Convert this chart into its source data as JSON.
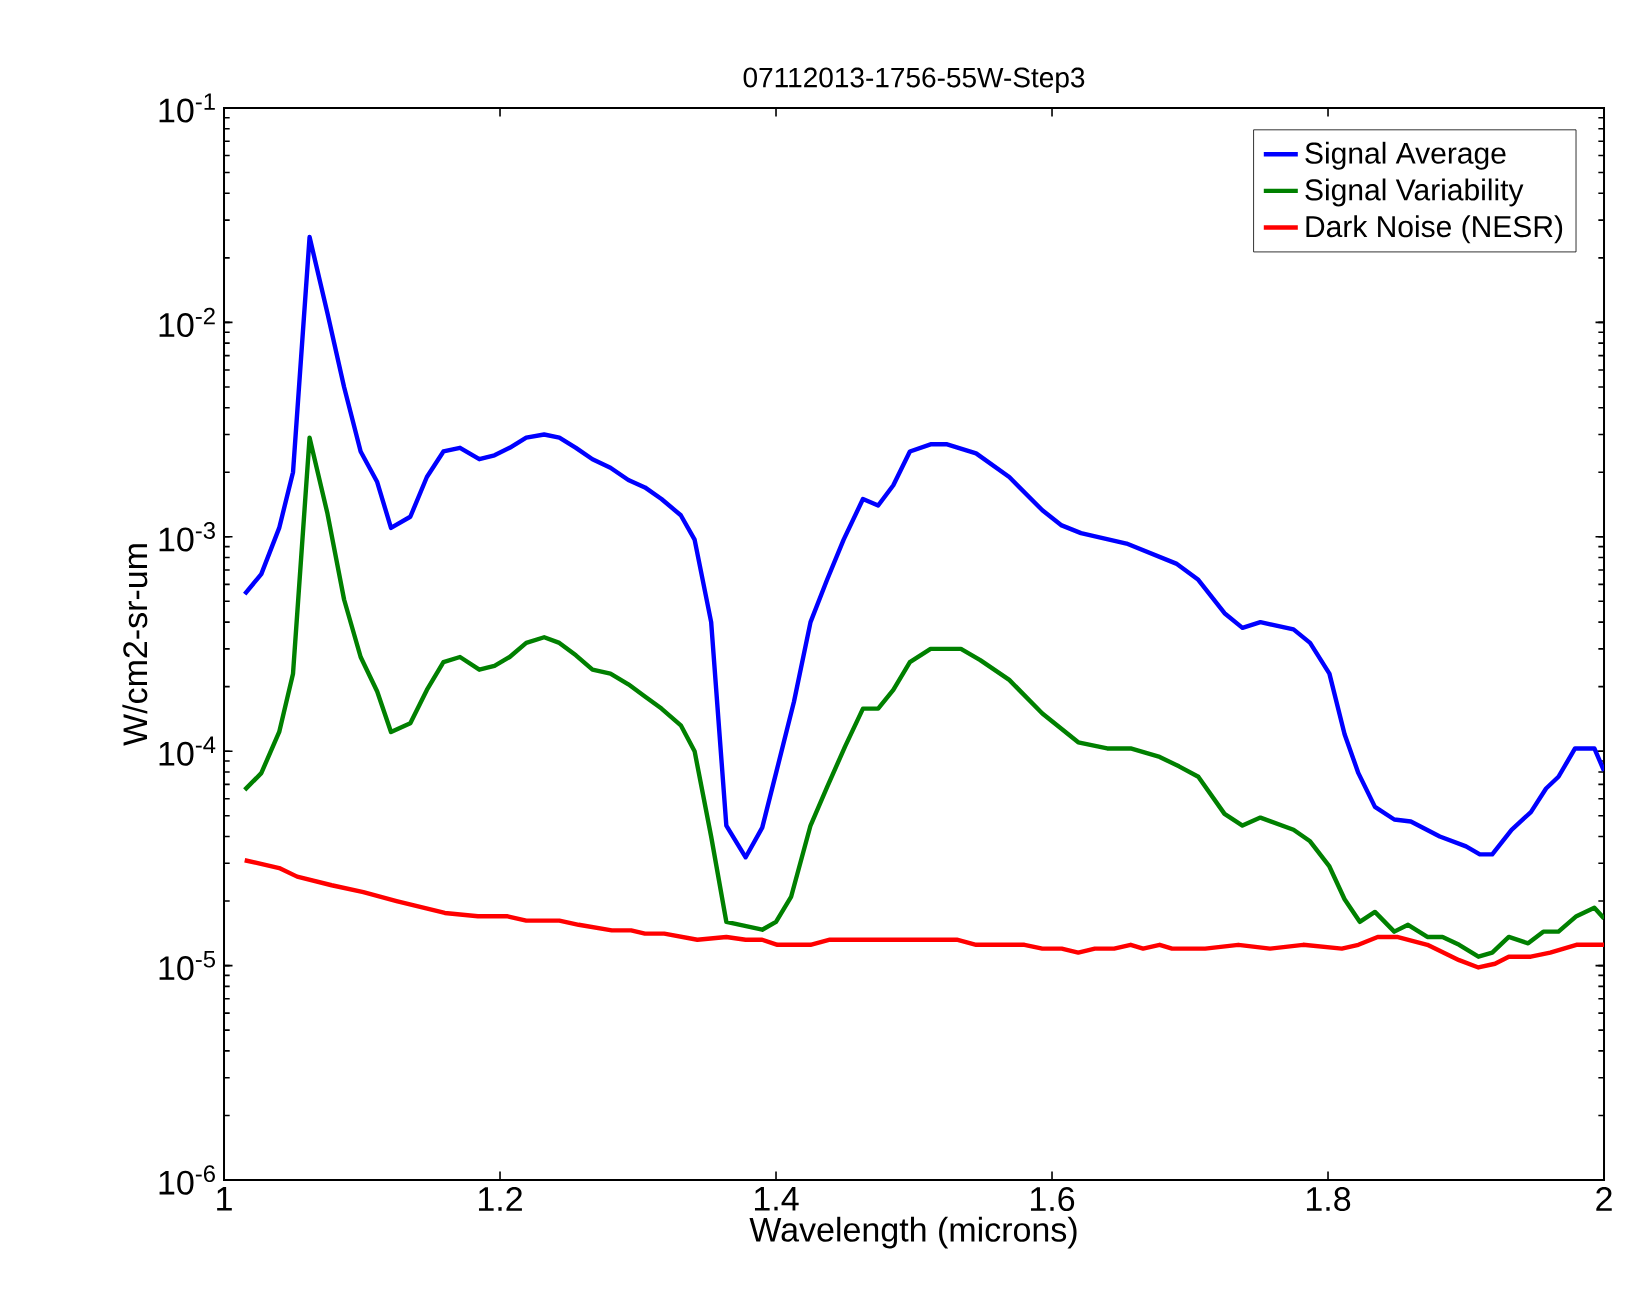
{
  "chart_data": {
    "type": "line",
    "title": "07112013-1756-55W-Step3",
    "xlabel": "Wavelength (microns)",
    "ylabel": "W/cm2-sr-um",
    "xlim": [
      1,
      2
    ],
    "ylim": [
      1e-06,
      0.1
    ],
    "log": "y",
    "legend": "top right",
    "xticks": [
      1,
      1.2,
      1.4,
      1.6,
      1.8,
      2
    ],
    "yticks": [
      {
        "value": 1e-06,
        "label": "10$^{-6}$"
      },
      {
        "value": 1e-05,
        "label": "10$^{-5}$"
      },
      {
        "value": 0.0001,
        "label": "10$^{-4}$"
      },
      {
        "value": 0.001,
        "label": "10$^{-3}$"
      },
      {
        "value": 0.01,
        "label": "10$^{-2}$"
      },
      {
        "value": 0.1,
        "label": "10$^{-1}$"
      }
    ],
    "series": [
      {
        "name": "Signal Average",
        "color": "#0000ff",
        "x": [
          1.015,
          1.027,
          1.04,
          1.05,
          1.062,
          1.075,
          1.087,
          1.099,
          1.111,
          1.121,
          1.135,
          1.147,
          1.159,
          1.171,
          1.185,
          1.196,
          1.207,
          1.219,
          1.232,
          1.243,
          1.255,
          1.267,
          1.28,
          1.293,
          1.305,
          1.317,
          1.331,
          1.341,
          1.353,
          1.364,
          1.378,
          1.39,
          1.4,
          1.413,
          1.425,
          1.437,
          1.449,
          1.463,
          1.474,
          1.485,
          1.497,
          1.512,
          1.524,
          1.545,
          1.569,
          1.593,
          1.607,
          1.621,
          1.654,
          1.69,
          1.706,
          1.725,
          1.738,
          1.751,
          1.775,
          1.787,
          1.801,
          1.812,
          1.822,
          1.834,
          1.848,
          1.86,
          1.881,
          1.9,
          1.91,
          1.919,
          1.933,
          1.947,
          1.958,
          1.967,
          1.979,
          1.993,
          2.0
        ],
        "values": [
          0.00054,
          0.00067,
          0.0011,
          0.002,
          0.025,
          0.011,
          0.005,
          0.0025,
          0.0018,
          0.0011,
          0.00124,
          0.0019,
          0.0025,
          0.0026,
          0.0023,
          0.0024,
          0.0026,
          0.0029,
          0.003,
          0.0029,
          0.0026,
          0.0023,
          0.0021,
          0.00184,
          0.0017,
          0.0015,
          0.00126,
          0.00097,
          0.0004,
          4.5e-05,
          3.2e-05,
          4.4e-05,
          7.9e-05,
          0.00017,
          0.0004,
          0.00063,
          0.00097,
          0.0015,
          0.0014,
          0.00174,
          0.0025,
          0.0027,
          0.0027,
          0.00245,
          0.0019,
          0.00133,
          0.00113,
          0.00104,
          0.00093,
          0.00075,
          0.00063,
          0.00044,
          0.000376,
          0.0004,
          0.00037,
          0.00032,
          0.00023,
          0.00012,
          7.9e-05,
          5.5e-05,
          4.8e-05,
          4.7e-05,
          4e-05,
          3.6e-05,
          3.3e-05,
          3.3e-05,
          4.3e-05,
          5.2e-05,
          6.7e-05,
          7.6e-05,
          0.000103,
          0.000103,
          8.1e-05
        ]
      },
      {
        "name": "Signal Variability",
        "color": "#008000",
        "x": [
          1.015,
          1.027,
          1.04,
          1.05,
          1.062,
          1.075,
          1.087,
          1.099,
          1.111,
          1.121,
          1.135,
          1.147,
          1.159,
          1.171,
          1.185,
          1.196,
          1.207,
          1.219,
          1.232,
          1.243,
          1.255,
          1.267,
          1.28,
          1.293,
          1.305,
          1.317,
          1.331,
          1.341,
          1.353,
          1.364,
          1.39,
          1.4,
          1.411,
          1.425,
          1.437,
          1.45,
          1.463,
          1.474,
          1.485,
          1.497,
          1.512,
          1.534,
          1.548,
          1.569,
          1.593,
          1.619,
          1.64,
          1.657,
          1.678,
          1.692,
          1.706,
          1.725,
          1.738,
          1.751,
          1.775,
          1.787,
          1.801,
          1.812,
          1.823,
          1.834,
          1.848,
          1.858,
          1.872,
          1.883,
          1.895,
          1.909,
          1.919,
          1.931,
          1.945,
          1.956,
          1.967,
          1.98,
          1.993,
          2.0
        ],
        "values": [
          6.6e-05,
          7.9e-05,
          0.000123,
          0.00023,
          0.0029,
          0.00128,
          0.00051,
          0.000275,
          0.00019,
          0.000123,
          0.000135,
          0.000193,
          0.00026,
          0.000275,
          0.00024,
          0.00025,
          0.000275,
          0.00032,
          0.00034,
          0.00032,
          0.00028,
          0.00024,
          0.00023,
          0.000205,
          0.00018,
          0.000158,
          0.000132,
          0.0001,
          4e-05,
          1.6e-05,
          1.47e-05,
          1.6e-05,
          2.1e-05,
          4.5e-05,
          6.8e-05,
          0.000105,
          0.000158,
          0.000158,
          0.000193,
          0.00026,
          0.0003,
          0.0003,
          0.000266,
          0.000215,
          0.00015,
          0.00011,
          0.000103,
          0.000103,
          9.4e-05,
          8.5e-05,
          7.6e-05,
          5.1e-05,
          4.5e-05,
          4.9e-05,
          4.3e-05,
          3.8e-05,
          2.9e-05,
          2.04e-05,
          1.6e-05,
          1.78e-05,
          1.44e-05,
          1.55e-05,
          1.36e-05,
          1.36e-05,
          1.25e-05,
          1.1e-05,
          1.15e-05,
          1.36e-05,
          1.27e-05,
          1.44e-05,
          1.44e-05,
          1.7e-05,
          1.86e-05,
          1.66e-05
        ]
      },
      {
        "name": "Dark Noise (NESR)",
        "color": "#ff0000",
        "x": [
          1.015,
          1.04,
          1.053,
          1.078,
          1.101,
          1.125,
          1.16,
          1.184,
          1.205,
          1.219,
          1.243,
          1.257,
          1.281,
          1.295,
          1.305,
          1.319,
          1.343,
          1.364,
          1.378,
          1.39,
          1.401,
          1.425,
          1.439,
          1.531,
          1.545,
          1.58,
          1.593,
          1.607,
          1.619,
          1.631,
          1.645,
          1.657,
          1.666,
          1.678,
          1.687,
          1.711,
          1.735,
          1.758,
          1.782,
          1.81,
          1.822,
          1.836,
          1.85,
          1.872,
          1.895,
          1.909,
          1.921,
          1.931,
          1.947,
          1.961,
          1.98,
          2.0
        ],
        "values": [
          3.1e-05,
          2.85e-05,
          2.6e-05,
          2.37e-05,
          2.2e-05,
          2e-05,
          1.76e-05,
          1.7e-05,
          1.7e-05,
          1.62e-05,
          1.62e-05,
          1.55e-05,
          1.46e-05,
          1.46e-05,
          1.41e-05,
          1.41e-05,
          1.32e-05,
          1.36e-05,
          1.32e-05,
          1.32e-05,
          1.25e-05,
          1.25e-05,
          1.32e-05,
          1.32e-05,
          1.25e-05,
          1.25e-05,
          1.2e-05,
          1.2e-05,
          1.15e-05,
          1.2e-05,
          1.2e-05,
          1.25e-05,
          1.2e-05,
          1.25e-05,
          1.2e-05,
          1.2e-05,
          1.25e-05,
          1.2e-05,
          1.25e-05,
          1.2e-05,
          1.25e-05,
          1.36e-05,
          1.36e-05,
          1.25e-05,
          1.06e-05,
          9.8e-06,
          1.02e-05,
          1.1e-05,
          1.1e-05,
          1.15e-05,
          1.25e-05,
          1.25e-05
        ]
      }
    ]
  }
}
